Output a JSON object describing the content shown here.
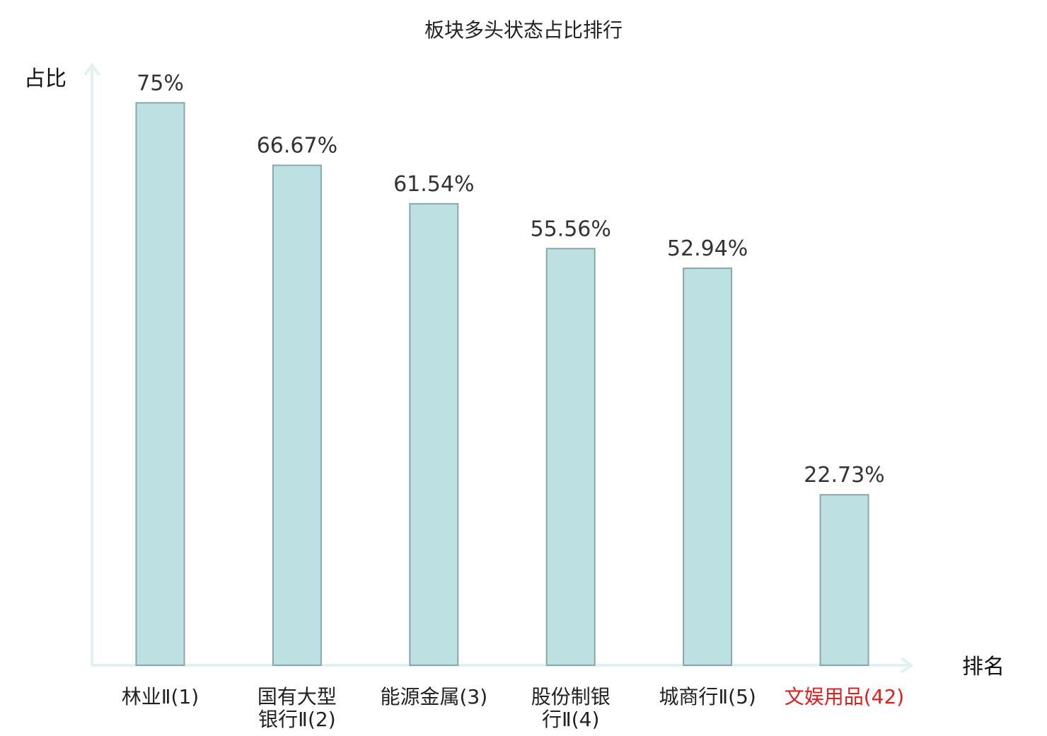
{
  "chart_data": {
    "type": "bar",
    "title": "板块多头状态占比排行",
    "ylabel": "占比",
    "xlabel": "排名",
    "ylim": [
      0,
      80
    ],
    "grid": false,
    "categories": [
      {
        "lines": [
          "林业Ⅱ(1)"
        ],
        "highlight": false
      },
      {
        "lines": [
          "国有大型",
          "银行Ⅱ(2)"
        ],
        "highlight": false
      },
      {
        "lines": [
          "能源金属(3)"
        ],
        "highlight": false
      },
      {
        "lines": [
          "股份制银",
          "行Ⅱ(4)"
        ],
        "highlight": false
      },
      {
        "lines": [
          "城商行Ⅱ(5)"
        ],
        "highlight": false
      },
      {
        "lines": [
          "文娱用品(42)"
        ],
        "highlight": true
      }
    ],
    "values": [
      75,
      66.67,
      61.54,
      55.56,
      52.94,
      22.73
    ],
    "value_labels": [
      "75%",
      "66.67%",
      "61.54%",
      "55.56%",
      "52.94%",
      "22.73%"
    ],
    "colors": {
      "bar_fill": "#bde1e3",
      "bar_stroke": "#8aa6a8",
      "axis": "#e0f2f0",
      "highlight": "#e02020"
    }
  }
}
